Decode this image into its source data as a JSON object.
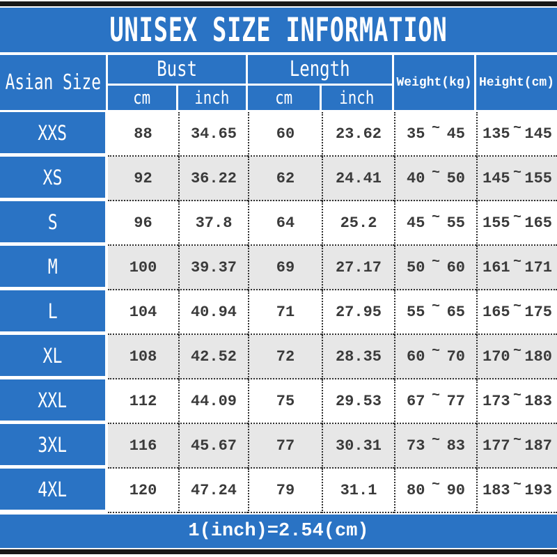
{
  "title": "UNISEX SIZE INFORMATION",
  "footer_note": "1(inch)=2.54(cm)",
  "tilde": "~",
  "colors": {
    "blue": "#2a73c4",
    "rowAlt": "#e7e7e7",
    "border_dots": "#2e2e2e",
    "bar_black": "#181818",
    "data_text": "#3a3a3a"
  },
  "header": {
    "size_col": "Asian Size",
    "bust": "Bust",
    "length": "Length",
    "weight": "Weight(kg)",
    "height": "Height(cm)",
    "sub": {
      "bust_cm": "cm",
      "bust_inch": "inch",
      "length_cm": "cm",
      "length_inch": "inch"
    }
  },
  "rows": [
    {
      "size": "XXS",
      "bust_cm": "88",
      "bust_inch": "34.65",
      "length_cm": "60",
      "length_inch": "23.62",
      "weight_min": "35",
      "weight_max": "45",
      "height_min": "135",
      "height_max": "145"
    },
    {
      "size": "XS",
      "bust_cm": "92",
      "bust_inch": "36.22",
      "length_cm": "62",
      "length_inch": "24.41",
      "weight_min": "40",
      "weight_max": "50",
      "height_min": "145",
      "height_max": "155"
    },
    {
      "size": "S",
      "bust_cm": "96",
      "bust_inch": "37.8",
      "length_cm": "64",
      "length_inch": "25.2",
      "weight_min": "45",
      "weight_max": "55",
      "height_min": "155",
      "height_max": "165"
    },
    {
      "size": "M",
      "bust_cm": "100",
      "bust_inch": "39.37",
      "length_cm": "69",
      "length_inch": "27.17",
      "weight_min": "50",
      "weight_max": "60",
      "height_min": "161",
      "height_max": "171"
    },
    {
      "size": "L",
      "bust_cm": "104",
      "bust_inch": "40.94",
      "length_cm": "71",
      "length_inch": "27.95",
      "weight_min": "55",
      "weight_max": "65",
      "height_min": "165",
      "height_max": "175"
    },
    {
      "size": "XL",
      "bust_cm": "108",
      "bust_inch": "42.52",
      "length_cm": "72",
      "length_inch": "28.35",
      "weight_min": "60",
      "weight_max": "70",
      "height_min": "170",
      "height_max": "180"
    },
    {
      "size": "XXL",
      "bust_cm": "112",
      "bust_inch": "44.09",
      "length_cm": "75",
      "length_inch": "29.53",
      "weight_min": "67",
      "weight_max": "77",
      "height_min": "173",
      "height_max": "183"
    },
    {
      "size": "3XL",
      "bust_cm": "116",
      "bust_inch": "45.67",
      "length_cm": "77",
      "length_inch": "30.31",
      "weight_min": "73",
      "weight_max": "83",
      "height_min": "177",
      "height_max": "187"
    },
    {
      "size": "4XL",
      "bust_cm": "120",
      "bust_inch": "47.24",
      "length_cm": "79",
      "length_inch": "31.1",
      "weight_min": "80",
      "weight_max": "90",
      "height_min": "183",
      "height_max": "193"
    }
  ],
  "chart_data": {
    "type": "table",
    "title": "UNISEX SIZE INFORMATION",
    "columns": [
      "Asian Size",
      "Bust cm",
      "Bust inch",
      "Length cm",
      "Length inch",
      "Weight(kg)",
      "Height(cm)"
    ],
    "rows": [
      [
        "XXS",
        88,
        34.65,
        60,
        23.62,
        "35~45",
        "135~145"
      ],
      [
        "XS",
        92,
        36.22,
        62,
        24.41,
        "40~50",
        "145~155"
      ],
      [
        "S",
        96,
        37.8,
        64,
        25.2,
        "45~55",
        "155~165"
      ],
      [
        "M",
        100,
        39.37,
        69,
        27.17,
        "50~60",
        "161~171"
      ],
      [
        "L",
        104,
        40.94,
        71,
        27.95,
        "55~65",
        "165~175"
      ],
      [
        "XL",
        108,
        42.52,
        72,
        28.35,
        "60~70",
        "170~180"
      ],
      [
        "XXL",
        112,
        44.09,
        75,
        29.53,
        "67~77",
        "173~183"
      ],
      [
        "3XL",
        116,
        45.67,
        77,
        30.31,
        "73~83",
        "177~187"
      ],
      [
        "4XL",
        120,
        47.24,
        79,
        31.1,
        "80~90",
        "183~193"
      ]
    ],
    "note": "1(inch)=2.54(cm)"
  }
}
